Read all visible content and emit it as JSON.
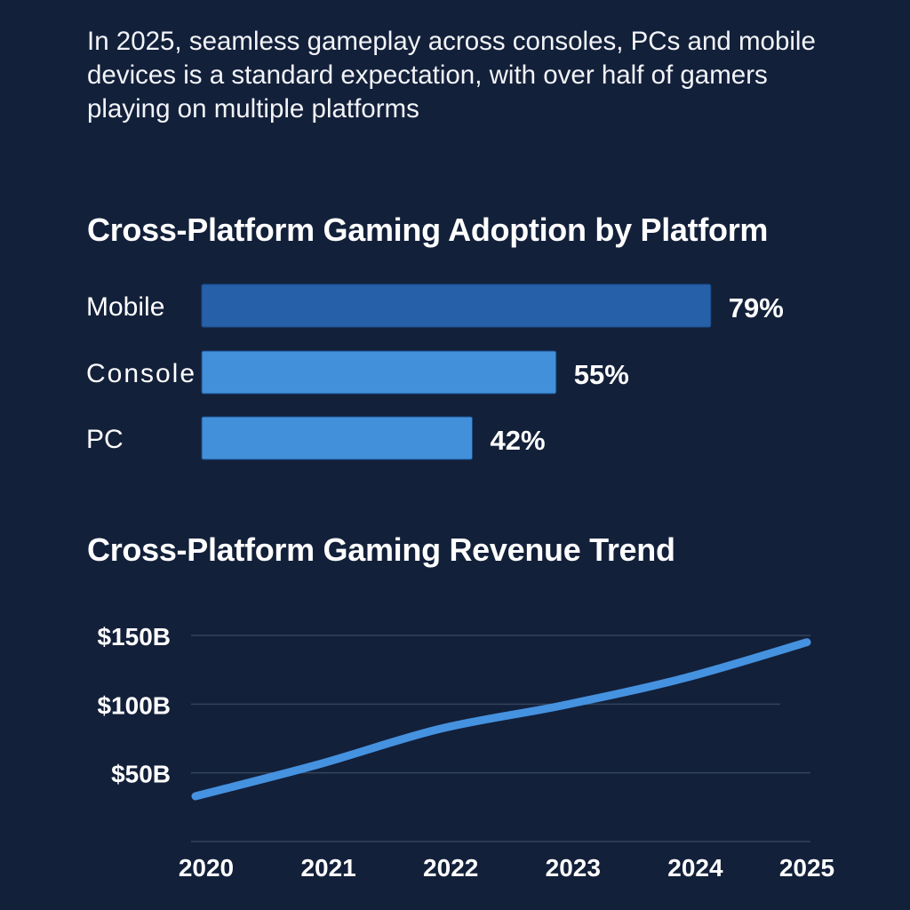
{
  "intro_text": "In 2025, seamless gameplay across consoles, PCs and mobile devices is a standard expectation, with over half of gamers playing on multiple platforms",
  "colors": {
    "background": "#13203a",
    "mobile_bar": "#2660a8",
    "bar": "#4290da",
    "line": "#4592e0",
    "grid": "#34445e"
  },
  "chart_data": [
    {
      "type": "bar",
      "orientation": "horizontal",
      "title": "Cross-Platform Gaming Adoption by Platform",
      "categories": [
        "Mobile",
        "Console",
        "PC"
      ],
      "values": [
        79,
        55,
        42
      ],
      "data_labels": [
        "79%",
        "55%",
        "42%"
      ],
      "unit": "%"
    },
    {
      "type": "line",
      "title": "Cross-Platform Gaming Revenue Trend",
      "x": [
        "2020",
        "2021",
        "2022",
        "2023",
        "2024",
        "2025"
      ],
      "values": [
        33,
        56,
        82,
        99,
        119,
        145
      ],
      "ylim": [
        0,
        150
      ],
      "yticks": [
        50,
        100,
        150
      ],
      "ytick_labels": [
        "$50B",
        "$100B",
        "$150B"
      ],
      "unit": "$B",
      "grid": true
    }
  ]
}
